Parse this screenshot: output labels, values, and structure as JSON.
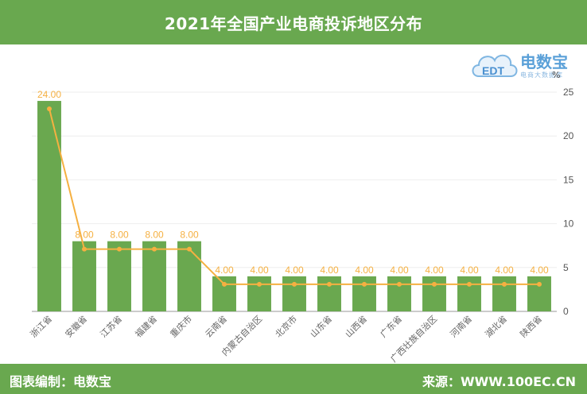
{
  "header": {
    "title": "2021年全国产业电商投诉地区分布"
  },
  "logo": {
    "name": "电数宝",
    "sub": "电商大数据库",
    "mark_text": "EDT"
  },
  "footer": {
    "left": "图表编制：电数宝",
    "right": "来源：WWW.100EC.CN"
  },
  "colors": {
    "bar": "#6aa84f",
    "line": "#f5b041",
    "header": "#69a84f"
  },
  "chart_data": {
    "type": "bar",
    "unit": "%",
    "categories": [
      "浙江省",
      "安徽省",
      "江苏省",
      "福建省",
      "重庆市",
      "云南省",
      "内蒙古自治区",
      "北京市",
      "山东省",
      "山西省",
      "广东省",
      "广西壮族自治区",
      "河南省",
      "湖北省",
      "陕西省"
    ],
    "values": [
      24.0,
      8.0,
      8.0,
      8.0,
      8.0,
      4.0,
      4.0,
      4.0,
      4.0,
      4.0,
      4.0,
      4.0,
      4.0,
      4.0,
      4.0
    ],
    "value_labels": [
      "24.00",
      "8.00",
      "8.00",
      "8.00",
      "8.00",
      "4.00",
      "4.00",
      "4.00",
      "4.00",
      "4.00",
      "4.00",
      "4.00",
      "4.00",
      "4.00",
      "4.00"
    ],
    "line_overlay": true,
    "ylim": [
      0,
      25
    ],
    "yticks": [
      "0",
      "5",
      "10",
      "15",
      "20",
      "25"
    ],
    "y_axis_side": "right",
    "grid": true
  }
}
